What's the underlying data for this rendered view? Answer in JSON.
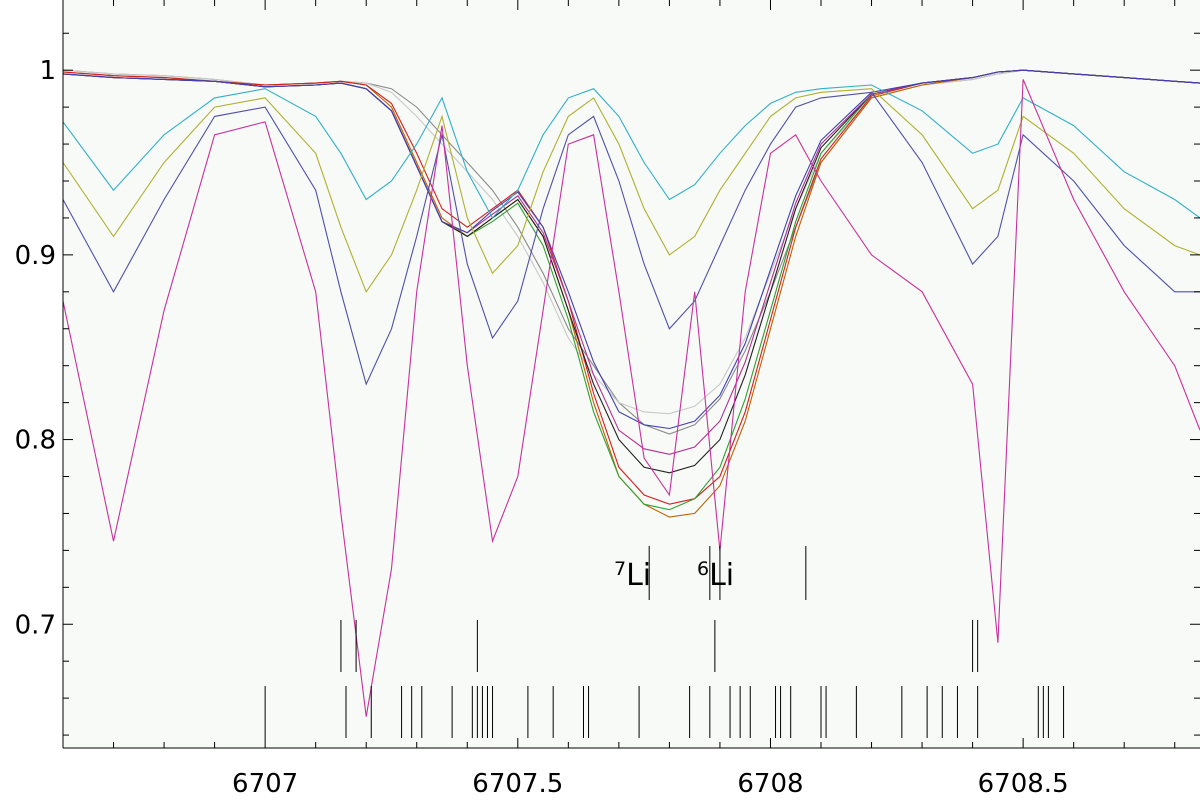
{
  "chart_data": {
    "type": "line",
    "title": "",
    "xlabel": "",
    "ylabel": "",
    "xlim": [
      6706.6,
      6708.85
    ],
    "ylim": [
      0.633,
      1.038
    ],
    "grid": false,
    "legend": "none",
    "x_ticks": [
      {
        "value": 6707,
        "label": "6707"
      },
      {
        "value": 6707.5,
        "label": "6707.5"
      },
      {
        "value": 6708,
        "label": "6708"
      },
      {
        "value": 6708.5,
        "label": "6708.5"
      }
    ],
    "y_ticks": [
      {
        "value": 0.7,
        "label": "0.7"
      },
      {
        "value": 0.8,
        "label": "0.8"
      },
      {
        "value": 0.9,
        "label": "0.9"
      },
      {
        "value": 1.0,
        "label": "1"
      }
    ],
    "x": [
      6706.6,
      6706.7,
      6706.8,
      6706.9,
      6707.0,
      6707.1,
      6707.15,
      6707.2,
      6707.25,
      6707.3,
      6707.35,
      6707.4,
      6707.45,
      6707.5,
      6707.55,
      6707.6,
      6707.65,
      6707.7,
      6707.75,
      6707.8,
      6707.85,
      6707.9,
      6707.95,
      6708.0,
      6708.05,
      6708.1,
      6708.2,
      6708.3,
      6708.4,
      6708.45,
      6708.5,
      6708.6,
      6708.7,
      6708.8,
      6708.85
    ],
    "series": [
      {
        "color": "#8b8b8b",
        "values": [
          1.0,
          0.998,
          0.997,
          0.995,
          0.992,
          0.993,
          0.994,
          0.993,
          0.99,
          0.98,
          0.965,
          0.95,
          0.935,
          0.915,
          0.89,
          0.86,
          0.84,
          0.82,
          0.808,
          0.803,
          0.808,
          0.822,
          0.848,
          0.88,
          0.915,
          0.95,
          0.985,
          0.992,
          0.995,
          0.998,
          1.0,
          0.998,
          0.996,
          0.994,
          0.993
        ]
      },
      {
        "color": "#c8c8c8",
        "values": [
          1.0,
          0.998,
          0.997,
          0.995,
          0.992,
          0.993,
          0.994,
          0.993,
          0.988,
          0.975,
          0.96,
          0.945,
          0.93,
          0.91,
          0.885,
          0.855,
          0.835,
          0.82,
          0.815,
          0.814,
          0.818,
          0.83,
          0.855,
          0.89,
          0.925,
          0.955,
          0.985,
          0.992,
          0.995,
          0.998,
          1.0,
          0.998,
          0.996,
          0.994,
          0.993
        ]
      },
      {
        "color": "#c06000",
        "values": [
          0.999,
          0.997,
          0.996,
          0.994,
          0.992,
          0.993,
          0.994,
          0.992,
          0.98,
          0.95,
          0.92,
          0.91,
          0.92,
          0.93,
          0.91,
          0.87,
          0.82,
          0.78,
          0.765,
          0.758,
          0.76,
          0.775,
          0.81,
          0.86,
          0.91,
          0.95,
          0.985,
          0.992,
          0.996,
          0.999,
          1.0,
          0.998,
          0.996,
          0.994,
          0.993
        ]
      },
      {
        "color": "#d02020",
        "values": [
          0.999,
          0.997,
          0.996,
          0.994,
          0.992,
          0.993,
          0.994,
          0.992,
          0.982,
          0.955,
          0.925,
          0.915,
          0.925,
          0.935,
          0.915,
          0.875,
          0.825,
          0.785,
          0.77,
          0.765,
          0.768,
          0.78,
          0.815,
          0.865,
          0.915,
          0.952,
          0.986,
          0.993,
          0.996,
          0.999,
          1.0,
          0.998,
          0.996,
          0.994,
          0.993
        ]
      },
      {
        "color": "#30a030",
        "values": [
          0.998,
          0.996,
          0.995,
          0.994,
          0.991,
          0.992,
          0.993,
          0.99,
          0.978,
          0.948,
          0.918,
          0.91,
          0.918,
          0.928,
          0.905,
          0.865,
          0.815,
          0.78,
          0.765,
          0.762,
          0.768,
          0.785,
          0.822,
          0.87,
          0.918,
          0.955,
          0.987,
          0.993,
          0.996,
          0.999,
          1.0,
          0.998,
          0.996,
          0.994,
          0.993
        ]
      },
      {
        "color": "#202020",
        "values": [
          0.998,
          0.996,
          0.995,
          0.994,
          0.991,
          0.992,
          0.993,
          0.99,
          0.978,
          0.948,
          0.918,
          0.91,
          0.92,
          0.93,
          0.91,
          0.87,
          0.83,
          0.8,
          0.785,
          0.782,
          0.786,
          0.8,
          0.835,
          0.88,
          0.925,
          0.958,
          0.987,
          0.993,
          0.996,
          0.999,
          1.0,
          0.998,
          0.996,
          0.994,
          0.993
        ]
      },
      {
        "color": "#b03090",
        "values": [
          0.998,
          0.996,
          0.995,
          0.994,
          0.991,
          0.992,
          0.993,
          0.99,
          0.978,
          0.948,
          0.918,
          0.912,
          0.922,
          0.932,
          0.912,
          0.875,
          0.835,
          0.805,
          0.795,
          0.792,
          0.796,
          0.81,
          0.842,
          0.885,
          0.928,
          0.96,
          0.987,
          0.993,
          0.996,
          0.999,
          1.0,
          0.998,
          0.996,
          0.994,
          0.993
        ]
      },
      {
        "color": "#4040b0",
        "values": [
          0.998,
          0.996,
          0.995,
          0.994,
          0.991,
          0.992,
          0.993,
          0.99,
          0.978,
          0.948,
          0.918,
          0.912,
          0.924,
          0.934,
          0.915,
          0.88,
          0.842,
          0.815,
          0.808,
          0.806,
          0.81,
          0.824,
          0.852,
          0.892,
          0.932,
          0.962,
          0.988,
          0.993,
          0.996,
          0.999,
          1.0,
          0.998,
          0.996,
          0.994,
          0.993
        ]
      },
      {
        "color": "#30b0c8",
        "values": [
          0.972,
          0.935,
          0.965,
          0.985,
          0.99,
          0.975,
          0.955,
          0.93,
          0.94,
          0.96,
          0.985,
          0.945,
          0.92,
          0.935,
          0.965,
          0.985,
          0.99,
          0.975,
          0.95,
          0.93,
          0.938,
          0.955,
          0.97,
          0.982,
          0.988,
          0.99,
          0.992,
          0.978,
          0.955,
          0.96,
          0.985,
          0.97,
          0.945,
          0.93,
          0.92
        ]
      },
      {
        "color": "#b0b030",
        "values": [
          0.95,
          0.91,
          0.95,
          0.98,
          0.985,
          0.955,
          0.915,
          0.88,
          0.9,
          0.935,
          0.975,
          0.92,
          0.89,
          0.905,
          0.945,
          0.975,
          0.985,
          0.96,
          0.925,
          0.9,
          0.91,
          0.935,
          0.955,
          0.975,
          0.985,
          0.988,
          0.99,
          0.965,
          0.925,
          0.935,
          0.975,
          0.955,
          0.925,
          0.905,
          0.9
        ]
      },
      {
        "color": "#5050a8",
        "values": [
          0.93,
          0.88,
          0.93,
          0.975,
          0.98,
          0.935,
          0.88,
          0.83,
          0.86,
          0.91,
          0.965,
          0.895,
          0.855,
          0.875,
          0.925,
          0.965,
          0.975,
          0.94,
          0.895,
          0.86,
          0.875,
          0.905,
          0.935,
          0.96,
          0.98,
          0.985,
          0.988,
          0.95,
          0.895,
          0.91,
          0.965,
          0.94,
          0.905,
          0.88,
          0.88
        ]
      },
      {
        "color": "#c8309b",
        "values": [
          0.875,
          0.745,
          0.87,
          0.965,
          0.972,
          0.88,
          0.76,
          0.65,
          0.73,
          0.88,
          0.97,
          0.84,
          0.745,
          0.78,
          0.87,
          0.96,
          0.965,
          0.88,
          0.79,
          0.77,
          0.88,
          0.74,
          0.88,
          0.955,
          0.965,
          0.94,
          0.9,
          0.88,
          0.83,
          0.69,
          0.995,
          0.93,
          0.88,
          0.84,
          0.805
        ]
      }
    ],
    "annotations": {
      "li7": {
        "sup": "7",
        "text": "Li"
      },
      "li6": {
        "sup": "6",
        "text": "Li"
      },
      "li_markers": [
        6707.76,
        6707.88,
        6707.9,
        6708.07
      ],
      "upper_lines": [
        6707.15,
        6707.18,
        6707.42,
        6707.89,
        6708.4,
        6708.41
      ],
      "lower_lines": [
        6707.0,
        6707.16,
        6707.21,
        6707.27,
        6707.29,
        6707.31,
        6707.37,
        6707.41,
        6707.42,
        6707.43,
        6707.44,
        6707.45,
        6707.52,
        6707.57,
        6707.63,
        6707.64,
        6707.74,
        6707.84,
        6707.88,
        6707.92,
        6707.94,
        6707.96,
        6708.01,
        6708.02,
        6708.04,
        6708.1,
        6708.11,
        6708.17,
        6708.26,
        6708.31,
        6708.34,
        6708.37,
        6708.41,
        6708.53,
        6708.54,
        6708.55,
        6708.58
      ]
    }
  }
}
